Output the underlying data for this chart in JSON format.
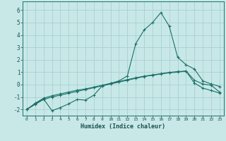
{
  "xlabel": "Humidex (Indice chaleur)",
  "background_color": "#c8e8e8",
  "grid_color": "#a8d0d0",
  "line_color": "#1a7068",
  "xlim": [
    -0.5,
    23.5
  ],
  "ylim": [
    -2.5,
    6.7
  ],
  "xticks": [
    0,
    1,
    2,
    3,
    4,
    5,
    6,
    7,
    8,
    9,
    10,
    11,
    12,
    13,
    14,
    15,
    16,
    17,
    18,
    19,
    20,
    21,
    22,
    23
  ],
  "yticks": [
    -2,
    -1,
    0,
    1,
    2,
    3,
    4,
    5,
    6
  ],
  "series1_x": [
    0,
    1,
    2,
    3,
    4,
    5,
    6,
    7,
    8,
    9,
    10,
    11,
    12,
    13,
    14,
    15,
    16,
    17,
    18,
    19,
    20,
    21,
    22,
    23
  ],
  "series1_y": [
    -2.0,
    -1.55,
    -1.15,
    -2.1,
    -1.85,
    -1.55,
    -1.2,
    -1.25,
    -0.85,
    -0.1,
    0.1,
    0.3,
    0.7,
    3.3,
    4.4,
    5.0,
    5.8,
    4.7,
    2.2,
    1.6,
    1.25,
    0.3,
    0.05,
    -0.15
  ],
  "series2_x": [
    0,
    1,
    2,
    3,
    4,
    5,
    6,
    7,
    8,
    9,
    10,
    11,
    12,
    13,
    14,
    15,
    16,
    17,
    18,
    19,
    20,
    21,
    22,
    23
  ],
  "series2_y": [
    -2.0,
    -1.6,
    -1.2,
    -1.0,
    -0.85,
    -0.7,
    -0.55,
    -0.4,
    -0.25,
    -0.1,
    0.05,
    0.2,
    0.35,
    0.5,
    0.65,
    0.75,
    0.85,
    0.95,
    1.0,
    1.1,
    0.35,
    0.05,
    -0.05,
    -0.6
  ],
  "series3_x": [
    0,
    1,
    2,
    3,
    4,
    5,
    6,
    7,
    8,
    9,
    10,
    11,
    12,
    13,
    14,
    15,
    16,
    17,
    18,
    19,
    20,
    21,
    22,
    23
  ],
  "series3_y": [
    -2.0,
    -1.5,
    -1.1,
    -0.9,
    -0.75,
    -0.6,
    -0.45,
    -0.35,
    -0.2,
    -0.05,
    0.1,
    0.25,
    0.4,
    0.55,
    0.68,
    0.78,
    0.88,
    0.98,
    1.05,
    1.08,
    0.12,
    -0.28,
    -0.48,
    -0.68
  ]
}
